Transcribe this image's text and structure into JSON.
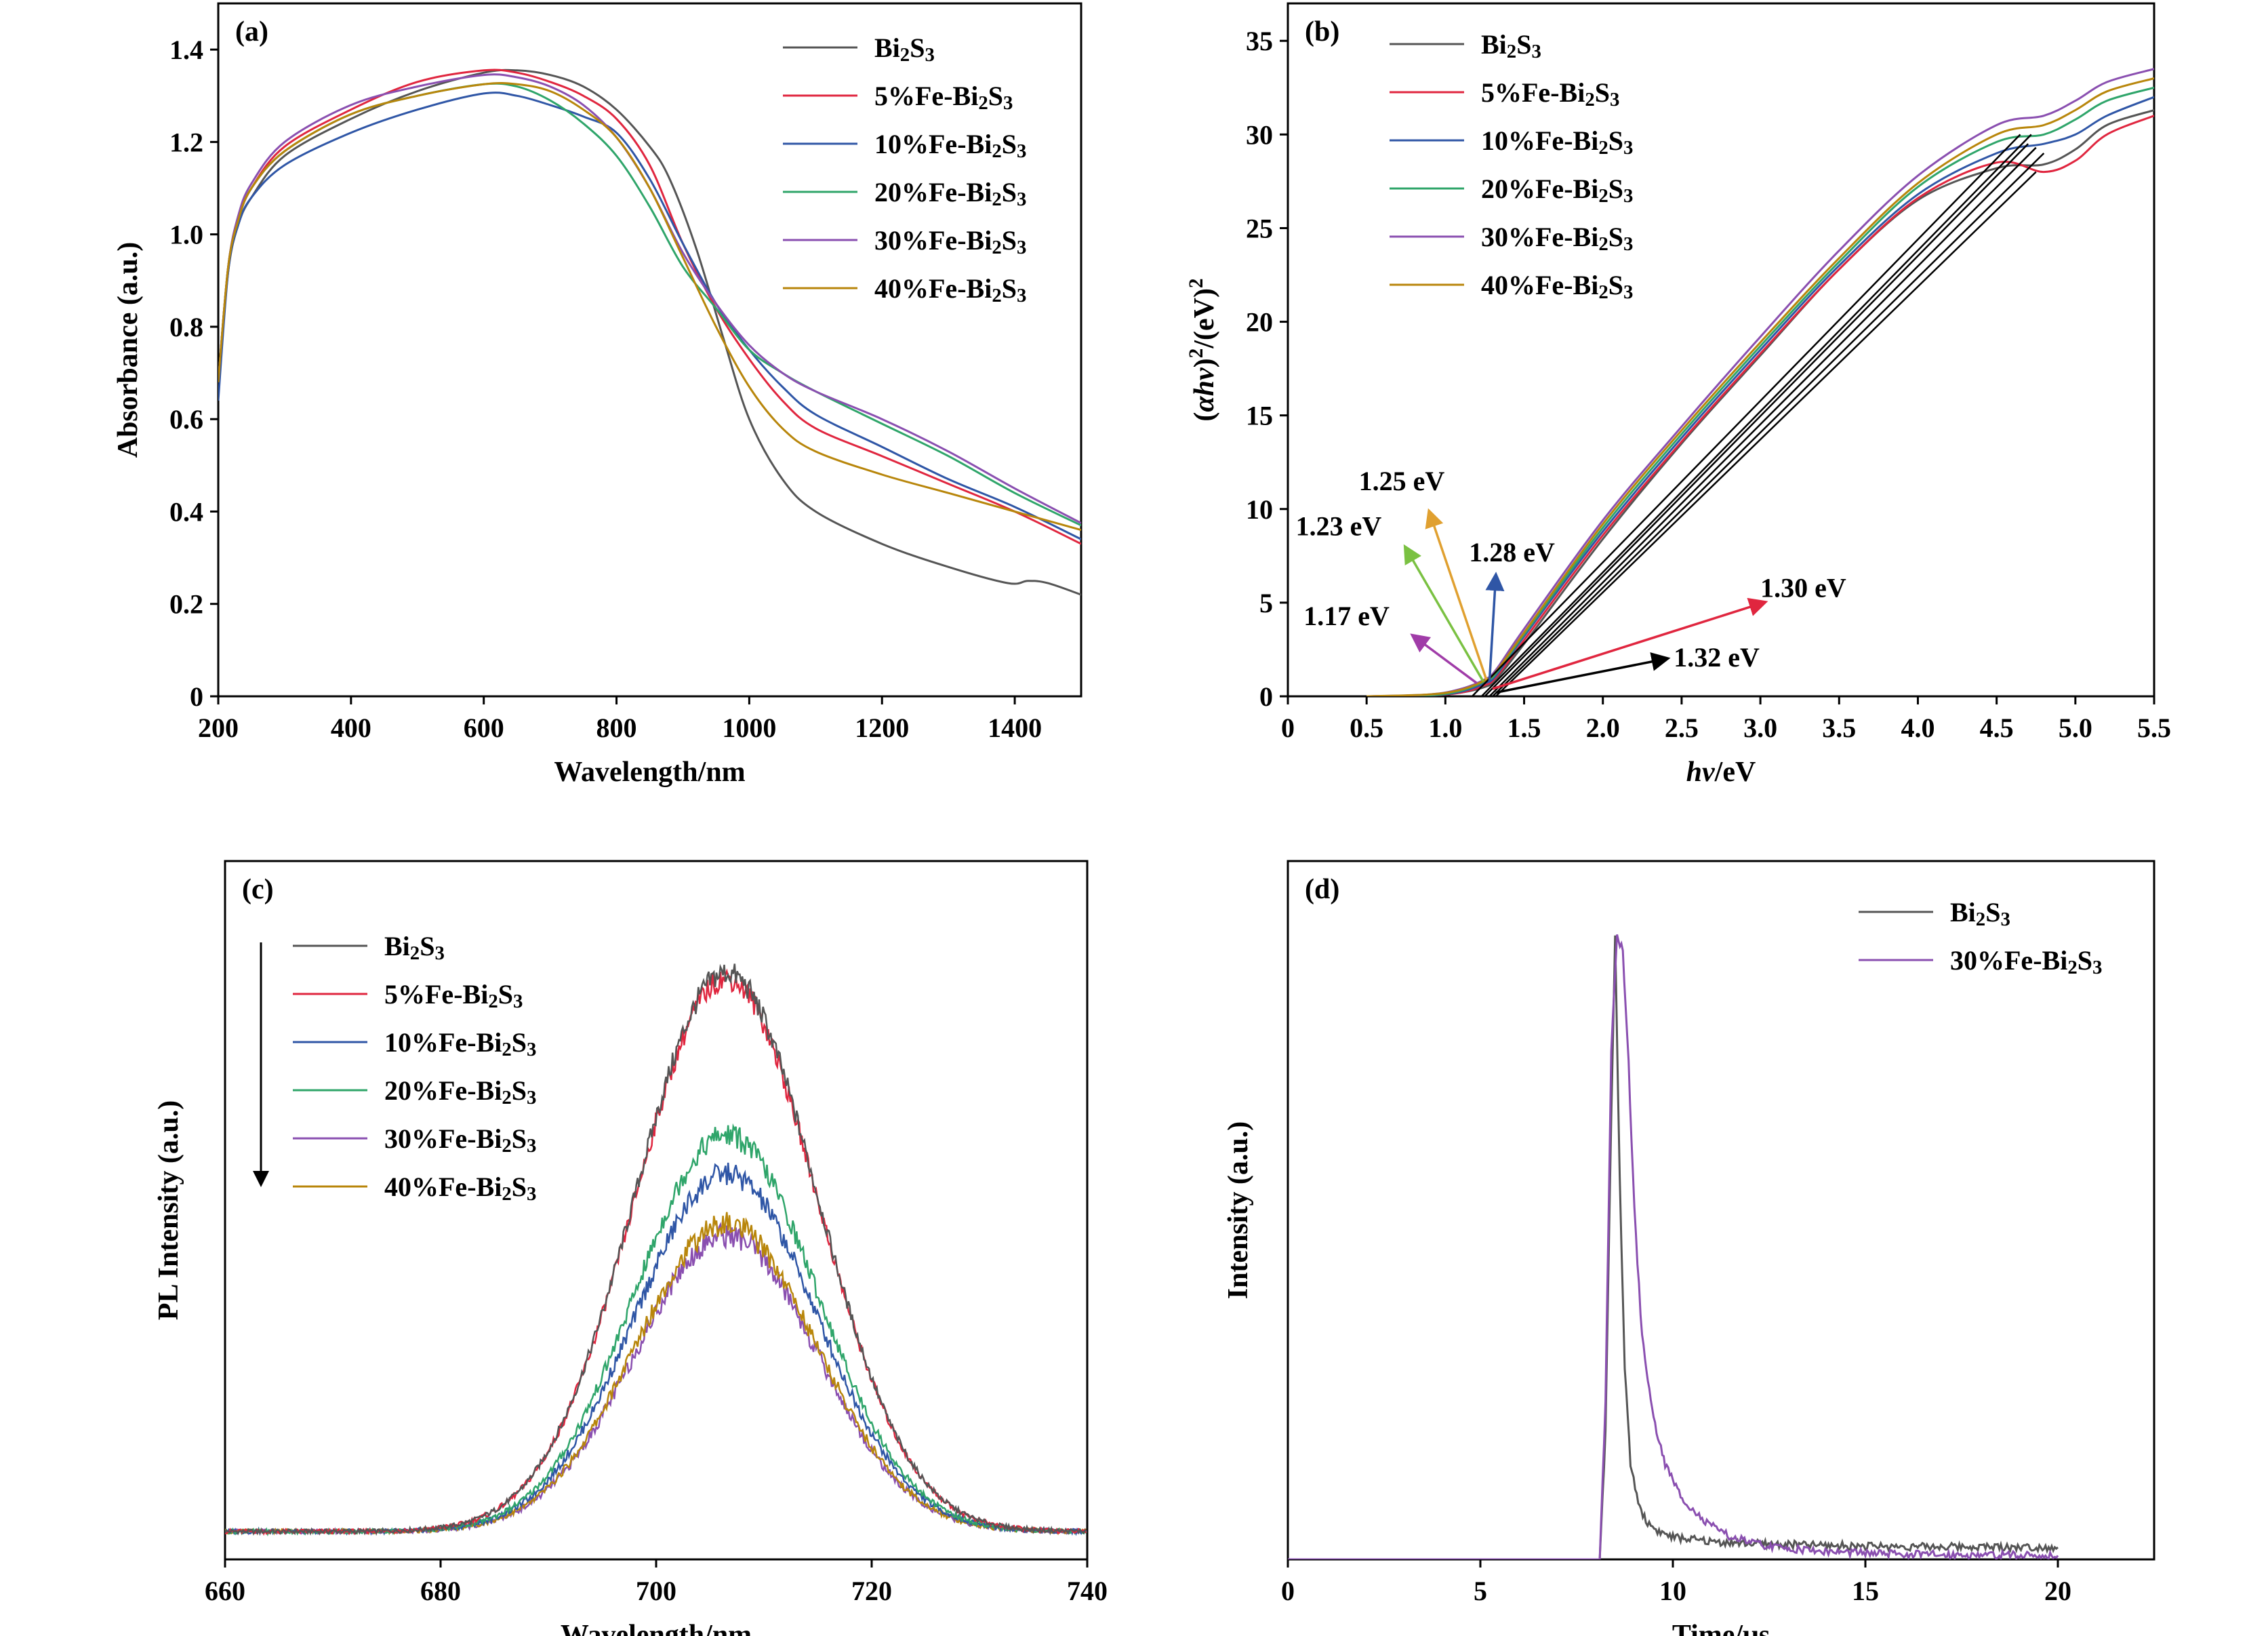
{
  "colors": {
    "Bi2S3": "#555555",
    "Fe5": "#e0263f",
    "Fe10": "#2f56a6",
    "Fe20": "#2fa56a",
    "Fe30": "#8a4fb0",
    "Fe40": "#b8860b",
    "fit": "#000000",
    "ann_117": "#a03ca8",
    "ann_123": "#7ac142",
    "ann_125": "#e0a030",
    "ann_128": "#2f56a6",
    "ann_130": "#e0263f",
    "ann_132": "#000000"
  },
  "chart_data": [
    {
      "id": "a",
      "type": "line",
      "panel_label": "(a)",
      "xlabel": "Wavelength/nm",
      "ylabel": "Absorbance (a.u.)",
      "xlim": [
        200,
        1500
      ],
      "ylim": [
        0,
        1.5
      ],
      "xticks": [
        200,
        400,
        600,
        800,
        1000,
        1200,
        1400
      ],
      "yticks": [
        0,
        0.2,
        0.4,
        0.6,
        0.8,
        1.0,
        1.2,
        1.4
      ],
      "ytick_labels": [
        "0",
        "0.2",
        "0.4",
        "0.6",
        "0.8",
        "1.0",
        "1.2",
        "1.4"
      ],
      "legend_position": "top-right",
      "series": [
        {
          "name": "Bi2S3",
          "key": "Bi2S3",
          "x": [
            200,
            215,
            230,
            250,
            300,
            400,
            500,
            600,
            650,
            700,
            750,
            800,
            850,
            880,
            920,
            960,
            1000,
            1050,
            1100,
            1200,
            1300,
            1390,
            1420,
            1450,
            1500
          ],
          "y": [
            0.68,
            0.92,
            1.02,
            1.08,
            1.17,
            1.25,
            1.31,
            1.35,
            1.355,
            1.345,
            1.32,
            1.27,
            1.19,
            1.12,
            0.97,
            0.78,
            0.6,
            0.47,
            0.4,
            0.33,
            0.28,
            0.245,
            0.25,
            0.245,
            0.22
          ]
        },
        {
          "name": "5%Fe-Bi2S3",
          "key": "Fe5",
          "x": [
            200,
            215,
            230,
            250,
            300,
            400,
            500,
            600,
            650,
            700,
            750,
            800,
            850,
            900,
            950,
            1000,
            1050,
            1100,
            1200,
            1300,
            1400,
            1500
          ],
          "y": [
            0.68,
            0.93,
            1.03,
            1.1,
            1.19,
            1.27,
            1.33,
            1.355,
            1.35,
            1.33,
            1.3,
            1.25,
            1.15,
            0.98,
            0.84,
            0.73,
            0.64,
            0.58,
            0.52,
            0.46,
            0.4,
            0.33
          ]
        },
        {
          "name": "10%Fe-Bi2S3",
          "key": "Fe10",
          "x": [
            200,
            215,
            230,
            250,
            300,
            400,
            500,
            600,
            650,
            700,
            750,
            800,
            850,
            900,
            950,
            1000,
            1050,
            1100,
            1200,
            1300,
            1400,
            1500
          ],
          "y": [
            0.64,
            0.92,
            1.02,
            1.08,
            1.15,
            1.22,
            1.27,
            1.305,
            1.3,
            1.28,
            1.255,
            1.22,
            1.12,
            0.98,
            0.85,
            0.75,
            0.67,
            0.61,
            0.54,
            0.47,
            0.41,
            0.34
          ]
        },
        {
          "name": "20%Fe-Bi2S3",
          "key": "Fe20",
          "x": [
            200,
            215,
            230,
            250,
            300,
            400,
            500,
            600,
            650,
            700,
            750,
            800,
            850,
            900,
            950,
            1000,
            1050,
            1100,
            1200,
            1300,
            1400,
            1500
          ],
          "y": [
            0.68,
            0.93,
            1.03,
            1.1,
            1.18,
            1.26,
            1.3,
            1.325,
            1.32,
            1.29,
            1.24,
            1.17,
            1.06,
            0.93,
            0.84,
            0.75,
            0.7,
            0.66,
            0.59,
            0.52,
            0.44,
            0.37
          ]
        },
        {
          "name": "30%Fe-Bi2S3",
          "key": "Fe30",
          "x": [
            200,
            215,
            230,
            250,
            300,
            400,
            500,
            600,
            650,
            700,
            750,
            800,
            850,
            900,
            950,
            1000,
            1050,
            1100,
            1200,
            1300,
            1400,
            1500
          ],
          "y": [
            0.68,
            0.93,
            1.04,
            1.11,
            1.2,
            1.28,
            1.32,
            1.345,
            1.34,
            1.32,
            1.28,
            1.21,
            1.1,
            0.96,
            0.85,
            0.76,
            0.7,
            0.66,
            0.6,
            0.53,
            0.45,
            0.375
          ]
        },
        {
          "name": "40%Fe-Bi2S3",
          "key": "Fe40",
          "x": [
            200,
            215,
            230,
            250,
            300,
            400,
            500,
            600,
            650,
            700,
            750,
            800,
            850,
            900,
            950,
            1000,
            1050,
            1100,
            1200,
            1300,
            1400,
            1500
          ],
          "y": [
            0.68,
            0.93,
            1.03,
            1.1,
            1.18,
            1.26,
            1.3,
            1.325,
            1.325,
            1.31,
            1.27,
            1.21,
            1.1,
            0.95,
            0.8,
            0.67,
            0.58,
            0.53,
            0.48,
            0.44,
            0.4,
            0.36
          ]
        }
      ]
    },
    {
      "id": "b",
      "type": "line",
      "panel_label": "(b)",
      "xlabel": "hν/eV",
      "ylabel": "(αhν)²/(eV)²",
      "xlim": [
        0,
        5.5
      ],
      "ylim": [
        0,
        37
      ],
      "xticks": [
        0,
        0.5,
        1.0,
        1.5,
        2.0,
        2.5,
        3.0,
        3.5,
        4.0,
        4.5,
        5.0,
        5.5
      ],
      "xtick_labels": [
        "0",
        "0.5",
        "1.0",
        "1.5",
        "2.0",
        "2.5",
        "3.0",
        "3.5",
        "4.0",
        "4.5",
        "5.0",
        "5.5"
      ],
      "yticks": [
        0,
        5,
        10,
        15,
        20,
        25,
        30,
        35
      ],
      "legend_position": "top-left",
      "series": [
        {
          "name": "Bi2S3",
          "key": "Bi2S3",
          "x": [
            0.5,
            0.9,
            1.1,
            1.25,
            1.32,
            1.5,
            2.0,
            2.5,
            3.0,
            3.5,
            4.0,
            4.5,
            4.8,
            5.0,
            5.2,
            5.5
          ],
          "y": [
            0,
            0.05,
            0.2,
            0.5,
            0.9,
            2.8,
            8.4,
            13.5,
            18.2,
            22.8,
            26.5,
            28.2,
            28.4,
            29.2,
            30.5,
            31.3
          ]
        },
        {
          "name": "5%Fe-Bi2S3",
          "key": "Fe5",
          "x": [
            0.5,
            0.9,
            1.1,
            1.25,
            1.32,
            1.5,
            2.0,
            2.5,
            3.0,
            3.5,
            4.0,
            4.5,
            4.8,
            5.0,
            5.2,
            5.5
          ],
          "y": [
            0,
            0.05,
            0.2,
            0.6,
            1.0,
            3.0,
            8.6,
            13.6,
            18.3,
            22.8,
            26.6,
            28.5,
            28.0,
            28.6,
            30.0,
            31.0
          ]
        },
        {
          "name": "10%Fe-Bi2S3",
          "key": "Fe10",
          "x": [
            0.5,
            0.9,
            1.1,
            1.25,
            1.32,
            1.5,
            2.0,
            2.5,
            3.0,
            3.5,
            4.0,
            4.5,
            4.8,
            5.0,
            5.2,
            5.5
          ],
          "y": [
            0,
            0.05,
            0.25,
            0.7,
            1.1,
            3.2,
            8.8,
            13.8,
            18.5,
            23.0,
            26.8,
            29.0,
            29.5,
            30.0,
            31.0,
            32.0
          ]
        },
        {
          "name": "20%Fe-Bi2S3",
          "key": "Fe20",
          "x": [
            0.5,
            0.9,
            1.1,
            1.25,
            1.32,
            1.5,
            2.0,
            2.5,
            3.0,
            3.5,
            4.0,
            4.5,
            4.8,
            5.0,
            5.2,
            5.5
          ],
          "y": [
            0,
            0.05,
            0.3,
            0.8,
            1.2,
            3.3,
            9.0,
            14.0,
            18.7,
            23.2,
            27.2,
            29.6,
            30.0,
            30.8,
            31.8,
            32.5
          ]
        },
        {
          "name": "30%Fe-Bi2S3",
          "key": "Fe30",
          "x": [
            0.5,
            0.9,
            1.1,
            1.25,
            1.32,
            1.5,
            2.0,
            2.5,
            3.0,
            3.5,
            4.0,
            4.5,
            4.8,
            5.0,
            5.2,
            5.5
          ],
          "y": [
            0,
            0.1,
            0.4,
            0.9,
            1.4,
            3.6,
            9.4,
            14.4,
            19.2,
            23.8,
            27.8,
            30.5,
            31.0,
            31.8,
            32.8,
            33.5
          ]
        },
        {
          "name": "40%Fe-Bi2S3",
          "key": "Fe40",
          "x": [
            0.5,
            0.9,
            1.1,
            1.25,
            1.32,
            1.5,
            2.0,
            2.5,
            3.0,
            3.5,
            4.0,
            4.5,
            4.8,
            5.0,
            5.2,
            5.5
          ],
          "y": [
            0,
            0.1,
            0.35,
            0.85,
            1.3,
            3.4,
            9.2,
            14.2,
            18.9,
            23.4,
            27.4,
            30.0,
            30.5,
            31.3,
            32.3,
            33.0
          ]
        }
      ],
      "fit_lines": [
        {
          "x": [
            1.17,
            4.65
          ],
          "y": [
            0,
            30
          ]
        },
        {
          "x": [
            1.23,
            4.72
          ],
          "y": [
            0,
            30
          ]
        },
        {
          "x": [
            1.25,
            4.7
          ],
          "y": [
            0,
            29.5
          ]
        },
        {
          "x": [
            1.28,
            4.75
          ],
          "y": [
            0,
            29.3
          ]
        },
        {
          "x": [
            1.3,
            4.8
          ],
          "y": [
            0,
            29
          ]
        },
        {
          "x": [
            1.32,
            4.75
          ],
          "y": [
            0,
            28
          ]
        }
      ],
      "annotations": [
        {
          "text": "1.17 eV",
          "key": "ann_117",
          "arrow_from": [
            1.2,
            0.7
          ],
          "arrow_to": [
            0.8,
            3.2
          ],
          "label_at": [
            0.1,
            3.8
          ]
        },
        {
          "text": "1.23 eV",
          "key": "ann_123",
          "arrow_from": [
            1.24,
            0.8
          ],
          "arrow_to": [
            0.75,
            7.9
          ],
          "label_at": [
            0.05,
            8.6
          ]
        },
        {
          "text": "1.25 eV",
          "key": "ann_125",
          "arrow_from": [
            1.26,
            0.9
          ],
          "arrow_to": [
            0.9,
            9.8
          ],
          "label_at": [
            0.45,
            11.0
          ]
        },
        {
          "text": "1.28 eV",
          "key": "ann_128",
          "arrow_from": [
            1.28,
            0.8
          ],
          "arrow_to": [
            1.32,
            6.4
          ],
          "label_at": [
            1.15,
            7.2
          ]
        },
        {
          "text": "1.30 eV",
          "key": "ann_130",
          "arrow_from": [
            1.3,
            0.4
          ],
          "arrow_to": [
            3.02,
            5.0
          ],
          "label_at": [
            3.0,
            5.3
          ]
        },
        {
          "text": "1.32 eV",
          "key": "ann_132",
          "arrow_from": [
            1.32,
            0.2
          ],
          "arrow_to": [
            2.4,
            2.0
          ],
          "label_at": [
            2.45,
            1.6
          ]
        }
      ]
    },
    {
      "id": "c",
      "type": "line",
      "panel_label": "(c)",
      "xlabel": "Wavelength/nm",
      "ylabel": "PL Intensity (a.u.)",
      "xlim": [
        660,
        740
      ],
      "ylim": [
        0,
        1.25
      ],
      "xticks": [
        660,
        680,
        700,
        720,
        740
      ],
      "yticks": [],
      "legend_position": "top-left",
      "peak_center": 706.5,
      "peak_sigma": 8.4,
      "baseline": 0.05,
      "series": [
        {
          "name": "Bi2S3",
          "key": "Bi2S3",
          "peak_height": 1.0
        },
        {
          "name": "5%Fe-Bi2S3",
          "key": "Fe5",
          "peak_height": 0.99
        },
        {
          "name": "10%Fe-Bi2S3",
          "key": "Fe10",
          "peak_height": 0.64
        },
        {
          "name": "20%Fe-Bi2S3",
          "key": "Fe20",
          "peak_height": 0.71
        },
        {
          "name": "30%Fe-Bi2S3",
          "key": "Fe30",
          "peak_height": 0.53
        },
        {
          "name": "40%Fe-Bi2S3",
          "key": "Fe40",
          "peak_height": 0.55
        }
      ]
    },
    {
      "id": "d",
      "type": "line",
      "panel_label": "(d)",
      "xlabel": "Time/μs",
      "ylabel": "Intensity (a.u.)",
      "xlim": [
        0,
        22.5
      ],
      "ylim": [
        0,
        1.1
      ],
      "xticks": [
        0,
        5,
        10,
        15,
        20
      ],
      "yticks": [],
      "legend_position": "top-right",
      "series": [
        {
          "name": "Bi2S3",
          "key": "Bi2S3",
          "x": [
            0,
            8.1,
            8.25,
            8.4,
            8.5,
            8.62,
            8.75,
            8.9,
            9.1,
            9.3,
            9.6,
            10,
            11,
            12,
            14,
            16,
            18,
            20
          ],
          "y": [
            0.0,
            0.0,
            0.2,
            0.7,
            0.98,
            0.6,
            0.3,
            0.15,
            0.09,
            0.06,
            0.045,
            0.035,
            0.028,
            0.025,
            0.022,
            0.02,
            0.02,
            0.019
          ]
        },
        {
          "name": "30%Fe-Bi2S3",
          "key": "Fe30",
          "x": [
            0,
            8.1,
            8.25,
            8.4,
            8.55,
            8.7,
            8.85,
            9.0,
            9.2,
            9.5,
            9.8,
            10.2,
            10.8,
            11.5,
            12.5,
            14,
            16,
            18,
            20
          ],
          "y": [
            0.0,
            0.0,
            0.25,
            0.8,
            0.98,
            0.96,
            0.78,
            0.55,
            0.35,
            0.22,
            0.15,
            0.1,
            0.06,
            0.035,
            0.02,
            0.012,
            0.008,
            0.007,
            0.006
          ]
        }
      ]
    }
  ]
}
